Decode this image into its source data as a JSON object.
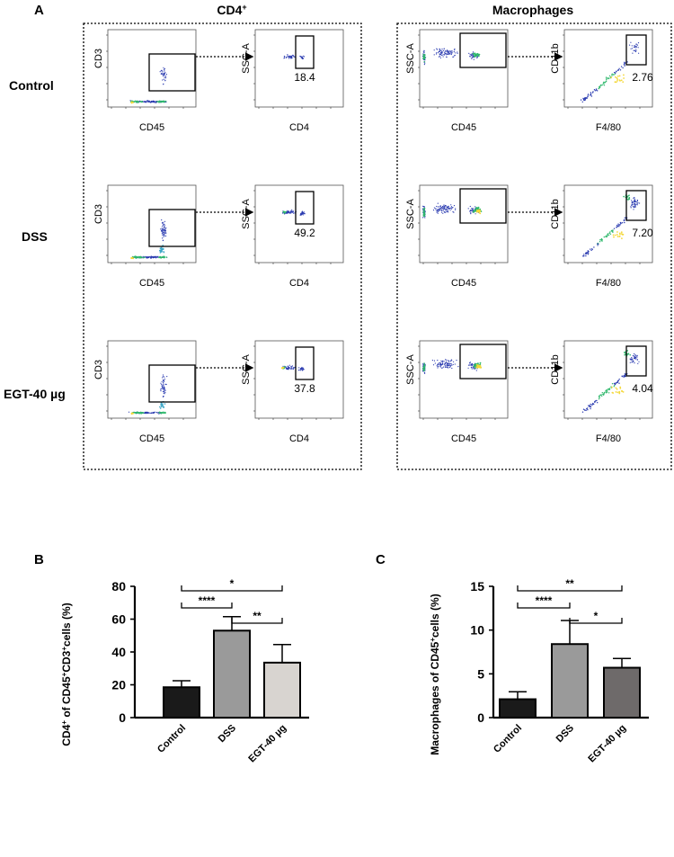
{
  "panel_a": {
    "label": "A",
    "titles": {
      "cd4": "CD4",
      "cd4_sup": "+",
      "macrophages": "Macrophages"
    },
    "row_labels": [
      "Control",
      "DSS",
      "EGT-40 µg"
    ],
    "axis_labels": {
      "cd3": "CD3",
      "cd45": "CD45",
      "ssc": "SSC-A",
      "cd4": "CD4",
      "cd11b": "CD11b",
      "f480": "F4/80"
    },
    "cd4_gate_values": [
      "18.4",
      "49.2",
      "37.8"
    ],
    "macrophage_gate_values": [
      "2.76",
      "7.20",
      "4.04"
    ],
    "colors": {
      "dot": "#2a3bb0",
      "dense": "#2fb86c",
      "hot": "#f4d83a"
    }
  },
  "panel_b": {
    "label": "B",
    "chart_data": {
      "type": "bar",
      "ylabel": "CD4+ of CD45+CD3+cells (%)",
      "ylabel_parts": [
        "CD4",
        "+",
        " of CD45",
        "+",
        "CD3",
        "+",
        "cells (%)"
      ],
      "categories": [
        "Control",
        "DSS",
        "EGT-40 µg"
      ],
      "values": [
        18.5,
        53,
        33.5
      ],
      "errors": [
        4,
        8.5,
        11
      ],
      "ylim": [
        0,
        80
      ],
      "yticks": [
        "0",
        "20",
        "40",
        "60",
        "80"
      ],
      "colors": [
        "#1a1a1a",
        "#9a9a9a",
        "#d8d4d0"
      ],
      "significance": [
        {
          "from": 0,
          "to": 1,
          "label": "****"
        },
        {
          "from": 0,
          "to": 2,
          "label": "*"
        },
        {
          "from": 1,
          "to": 2,
          "label": "**"
        }
      ]
    }
  },
  "panel_c": {
    "label": "C",
    "chart_data": {
      "type": "bar",
      "ylabel": "Macrophages of CD45+cells (%)",
      "ylabel_parts": [
        "Macrophages of CD45",
        "+",
        "cells (%)"
      ],
      "categories": [
        "Control",
        "DSS",
        "EGT-40 µg"
      ],
      "values": [
        2.1,
        8.4,
        5.7
      ],
      "errors": [
        0.85,
        2.7,
        1.05
      ],
      "ylim": [
        0,
        15
      ],
      "yticks": [
        "0",
        "5",
        "10",
        "15"
      ],
      "colors": [
        "#1a1a1a",
        "#9a9a9a",
        "#6e6a6a"
      ],
      "significance": [
        {
          "from": 0,
          "to": 1,
          "label": "****"
        },
        {
          "from": 0,
          "to": 2,
          "label": "**"
        },
        {
          "from": 1,
          "to": 2,
          "label": "*"
        }
      ]
    }
  }
}
